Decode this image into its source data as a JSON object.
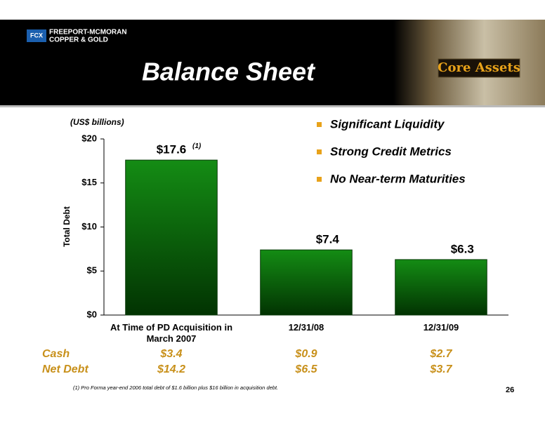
{
  "header": {
    "logo_line1": "FREEPORT-MCMORAN",
    "logo_line2": "COPPER & GOLD",
    "logo_mark": "FCX",
    "title": "Balance Sheet",
    "badge": "Core Assets"
  },
  "chart_data": {
    "type": "bar",
    "units_note": "(US$ billions)",
    "y_label": "Total Debt",
    "categories": [
      "At Time of PD Acquisition in March 2007",
      "12/31/08",
      "12/31/09"
    ],
    "values": [
      17.6,
      7.4,
      6.3
    ],
    "value_labels": [
      "$17.6",
      "$7.4",
      "$6.3"
    ],
    "annotations": [
      {
        "category": 0,
        "text": "(1)"
      }
    ],
    "color": "#148c14",
    "ylim": [
      0,
      20
    ],
    "yticks": [
      {
        "value": 0,
        "label": "$0"
      },
      {
        "value": 5,
        "label": "$5"
      },
      {
        "value": 10,
        "label": "$10"
      },
      {
        "value": 15,
        "label": "$15"
      },
      {
        "value": 20,
        "label": "$20"
      }
    ]
  },
  "bullets": [
    "Significant Liquidity",
    "Strong Credit Metrics",
    "No Near-term Maturities"
  ],
  "table": {
    "rows": [
      {
        "label": "Cash",
        "values": [
          "$3.4",
          "$0.9",
          "$2.7"
        ]
      },
      {
        "label": "Net Debt",
        "values": [
          "$14.2",
          "$6.5",
          "$3.7"
        ]
      }
    ]
  },
  "footnote": "(1) Pro Forma year-end 2006 total debt of $1.6 billion plus $16 billion in acquisition debt.",
  "page_number": "26"
}
